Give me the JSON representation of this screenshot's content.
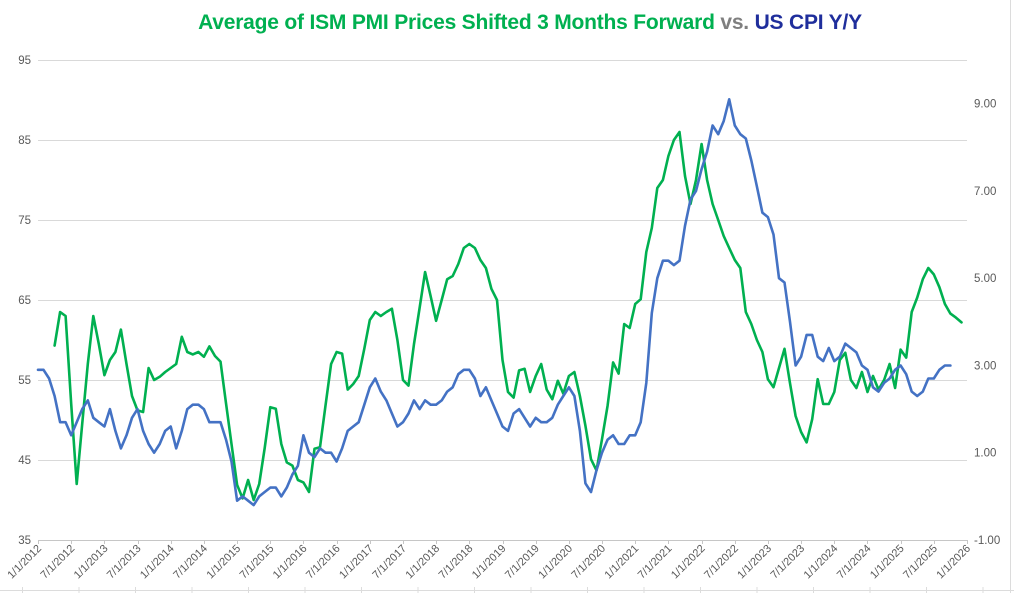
{
  "title": {
    "ism_part": "Average of ISM PMI Prices Shifted 3 Months Forward",
    "separator": " vs. ",
    "cpi_part": "US CPI Y/Y"
  },
  "colors": {
    "ism_line": "#00B050",
    "cpi_line": "#4472C4",
    "title_ism": "#00B050",
    "title_separator": "#7F7F7F",
    "title_cpi": "#1F2E9C",
    "axis_text": "#595959",
    "gridline": "#D9D9D9",
    "axis_line": "#C6C6C6",
    "worksheet_artifact": "#DCDCDC"
  },
  "chart_data": {
    "type": "line",
    "title": "Average of ISM PMI Prices Shifted 3 Months Forward vs. US CPI Y/Y",
    "grid": "horizontal-only",
    "legend": "none-title-colored",
    "x_tick_labels": [
      "1/1/2012",
      "7/1/2012",
      "1/1/2013",
      "7/1/2013",
      "1/1/2014",
      "7/1/2014",
      "1/1/2015",
      "7/1/2015",
      "1/1/2016",
      "7/1/2016",
      "1/1/2017",
      "7/1/2017",
      "1/1/2018",
      "7/1/2018",
      "1/1/2019",
      "7/1/2019",
      "1/1/2020",
      "7/1/2020",
      "1/1/2021",
      "7/1/2021",
      "1/1/2022",
      "7/1/2022",
      "1/1/2023",
      "7/1/2023",
      "1/1/2024",
      "7/1/2024",
      "1/1/2025",
      "7/1/2025",
      "1/1/2026"
    ],
    "x_domain_months": [
      "2012-01",
      "2026-01"
    ],
    "left_axis": {
      "ticks": [
        95,
        85,
        75,
        65,
        55,
        45,
        35
      ],
      "range": [
        35,
        95
      ]
    },
    "right_axis": {
      "tick_labels": [
        "9.00",
        "7.00",
        "5.00",
        "3.00",
        "1.00",
        "-1.00"
      ],
      "tick_values": [
        9,
        7,
        5,
        3,
        1,
        -1
      ],
      "range": [
        -1,
        10
      ]
    },
    "series": [
      {
        "name": "Average of ISM PMI Prices Shifted 3 Months Forward",
        "axis": "left",
        "color": "#00B050",
        "frequency": "monthly",
        "start_month": "2012-04",
        "values": [
          59.3,
          63.5,
          63.0,
          52.0,
          42.0,
          49.5,
          57.0,
          63.0,
          59.5,
          55.6,
          57.5,
          58.5,
          61.3,
          57.0,
          53.0,
          51.2,
          51.0,
          56.5,
          55.0,
          55.4,
          56.0,
          56.5,
          57.0,
          60.4,
          58.5,
          58.2,
          58.5,
          57.9,
          59.2,
          58.0,
          57.3,
          52.1,
          47.0,
          41.9,
          40.2,
          42.5,
          40.0,
          42.0,
          46.5,
          51.6,
          51.4,
          47.0,
          44.7,
          44.3,
          42.5,
          42.2,
          41.0,
          46.4,
          46.6,
          51.8,
          57.0,
          58.5,
          58.3,
          53.8,
          54.5,
          55.5,
          58.9,
          62.5,
          63.5,
          63.0,
          63.5,
          63.9,
          60.0,
          55.0,
          54.3,
          59.5,
          64.0,
          68.5,
          65.5,
          62.4,
          65.0,
          67.6,
          68.0,
          69.5,
          71.5,
          72.0,
          71.5,
          70.0,
          69.0,
          66.4,
          65.0,
          57.5,
          53.5,
          52.8,
          56.2,
          56.4,
          53.5,
          55.5,
          57.0,
          53.8,
          52.6,
          54.9,
          53.3,
          55.5,
          56.0,
          53.0,
          49.3,
          45.1,
          43.7,
          47.6,
          51.8,
          57.2,
          55.8,
          62.0,
          61.5,
          64.5,
          65.1,
          71.0,
          74.0,
          79.0,
          80.0,
          83.0,
          85.0,
          86.0,
          80.5,
          77.0,
          80.0,
          84.5,
          80.0,
          77.0,
          75.0,
          73.0,
          71.5,
          70.0,
          69.0,
          63.5,
          62.0,
          60.0,
          58.5,
          55.1,
          54.1,
          56.5,
          58.9,
          54.6,
          50.5,
          48.5,
          47.2,
          50.1,
          55.1,
          52.0,
          52.0,
          53.5,
          57.5,
          58.4,
          55.0,
          54.0,
          56.0,
          53.5,
          55.5,
          53.8,
          55.0,
          57.0,
          54.0,
          58.8,
          57.8,
          63.5,
          65.3,
          67.6,
          69.0,
          68.2,
          66.6,
          64.5,
          63.3,
          62.8,
          62.2
        ]
      },
      {
        "name": "US CPI Y/Y",
        "axis": "right",
        "color": "#4472C4",
        "frequency": "monthly",
        "start_month": "2012-01",
        "values": [
          2.9,
          2.9,
          2.7,
          2.3,
          1.7,
          1.7,
          1.4,
          1.7,
          2.0,
          2.2,
          1.8,
          1.7,
          1.6,
          2.0,
          1.5,
          1.1,
          1.4,
          1.8,
          2.0,
          1.5,
          1.2,
          1.0,
          1.2,
          1.5,
          1.6,
          1.1,
          1.5,
          2.0,
          2.1,
          2.1,
          2.0,
          1.7,
          1.7,
          1.7,
          1.3,
          0.8,
          -0.1,
          0.0,
          -0.1,
          -0.2,
          0.0,
          0.1,
          0.2,
          0.2,
          0.0,
          0.2,
          0.5,
          0.7,
          1.4,
          1.0,
          0.9,
          1.1,
          1.0,
          1.0,
          0.8,
          1.1,
          1.5,
          1.6,
          1.7,
          2.1,
          2.5,
          2.7,
          2.4,
          2.2,
          1.9,
          1.6,
          1.7,
          1.9,
          2.2,
          2.0,
          2.2,
          2.1,
          2.1,
          2.2,
          2.4,
          2.5,
          2.8,
          2.9,
          2.9,
          2.7,
          2.3,
          2.5,
          2.2,
          1.9,
          1.6,
          1.5,
          1.9,
          2.0,
          1.8,
          1.6,
          1.8,
          1.7,
          1.7,
          1.8,
          2.1,
          2.3,
          2.5,
          2.3,
          1.5,
          0.3,
          0.1,
          0.6,
          1.0,
          1.3,
          1.4,
          1.2,
          1.2,
          1.4,
          1.4,
          1.7,
          2.6,
          4.2,
          5.0,
          5.4,
          5.4,
          5.3,
          5.4,
          6.2,
          6.8,
          7.0,
          7.5,
          7.9,
          8.5,
          8.3,
          8.6,
          9.1,
          8.5,
          8.3,
          8.2,
          7.7,
          7.1,
          6.5,
          6.4,
          6.0,
          5.0,
          4.9,
          4.0,
          3.0,
          3.2,
          3.7,
          3.7,
          3.2,
          3.1,
          3.4,
          3.1,
          3.2,
          3.5,
          3.4,
          3.3,
          3.0,
          2.9,
          2.5,
          2.4,
          2.6,
          2.7,
          2.9,
          3.0,
          2.8,
          2.4,
          2.3,
          2.4,
          2.7,
          2.7,
          2.9,
          3.0,
          3.0
        ]
      }
    ]
  }
}
